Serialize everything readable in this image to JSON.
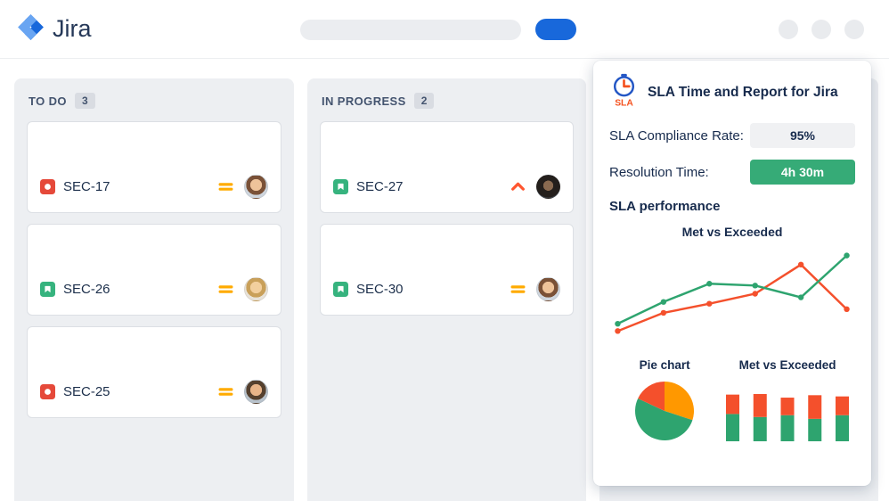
{
  "header": {
    "app_name": "Jira",
    "search": {
      "placeholder": ""
    },
    "primary_button_label": ""
  },
  "board": {
    "columns": [
      {
        "title": "TO DO",
        "count": "3",
        "cards": [
          {
            "key": "SEC-17",
            "type": "bug",
            "priority": "medium"
          },
          {
            "key": "SEC-26",
            "type": "story",
            "priority": "medium"
          },
          {
            "key": "SEC-25",
            "type": "bug",
            "priority": "medium"
          }
        ]
      },
      {
        "title": "IN PROGRESS",
        "count": "2",
        "cards": [
          {
            "key": "SEC-27",
            "type": "story",
            "priority": "high"
          },
          {
            "key": "SEC-30",
            "type": "story",
            "priority": "medium"
          }
        ]
      }
    ]
  },
  "sla_panel": {
    "title": "SLA Time and Report for Jira",
    "metrics": [
      {
        "label": "SLA Compliance Rate:",
        "value": "95%",
        "style": "gray"
      },
      {
        "label": "Resolution Time:",
        "value": "4h 30m",
        "style": "green"
      }
    ],
    "section_heading": "SLA performance",
    "line_chart_title": "Met vs Exceeded",
    "pie_chart_label": "Pie chart",
    "bar_chart_label": "Met vs Exceeded",
    "colors": {
      "met_green": "#2ea46f",
      "exceeded_red": "#f4502c",
      "badge_green": "#36AB77",
      "jira_blue": "#1868DB"
    }
  },
  "chart_data": [
    {
      "type": "line",
      "title": "Met vs Exceeded",
      "x": [
        1,
        2,
        3,
        4,
        5,
        6
      ],
      "series": [
        {
          "name": "Met",
          "color": "#2ea46f",
          "values": [
            18,
            42,
            62,
            60,
            47,
            93
          ]
        },
        {
          "name": "Exceeded",
          "color": "#f4502c",
          "values": [
            10,
            30,
            40,
            51,
            83,
            34
          ]
        }
      ],
      "ylim": [
        0,
        100
      ],
      "grid": false,
      "axes_hidden": true,
      "legend": "none"
    },
    {
      "type": "pie",
      "title": "Pie chart",
      "slices": [
        {
          "label": "Exceeded (orange)",
          "value": 30,
          "color": "#FF9800"
        },
        {
          "label": "Met",
          "value": 52,
          "color": "#2ea46f"
        },
        {
          "label": "Exceeded (red)",
          "value": 18,
          "color": "#f4502c"
        }
      ]
    },
    {
      "type": "stacked-bar",
      "title": "Met vs Exceeded",
      "categories": [
        "1",
        "2",
        "3",
        "4",
        "5"
      ],
      "series": [
        {
          "name": "Met",
          "color": "#2ea46f",
          "values": [
            45,
            40,
            43,
            37,
            43
          ]
        },
        {
          "name": "Exceeded",
          "color": "#f4502c",
          "values": [
            32,
            38,
            29,
            39,
            31
          ]
        }
      ],
      "ylim": [
        0,
        100
      ],
      "legend": "none"
    }
  ]
}
